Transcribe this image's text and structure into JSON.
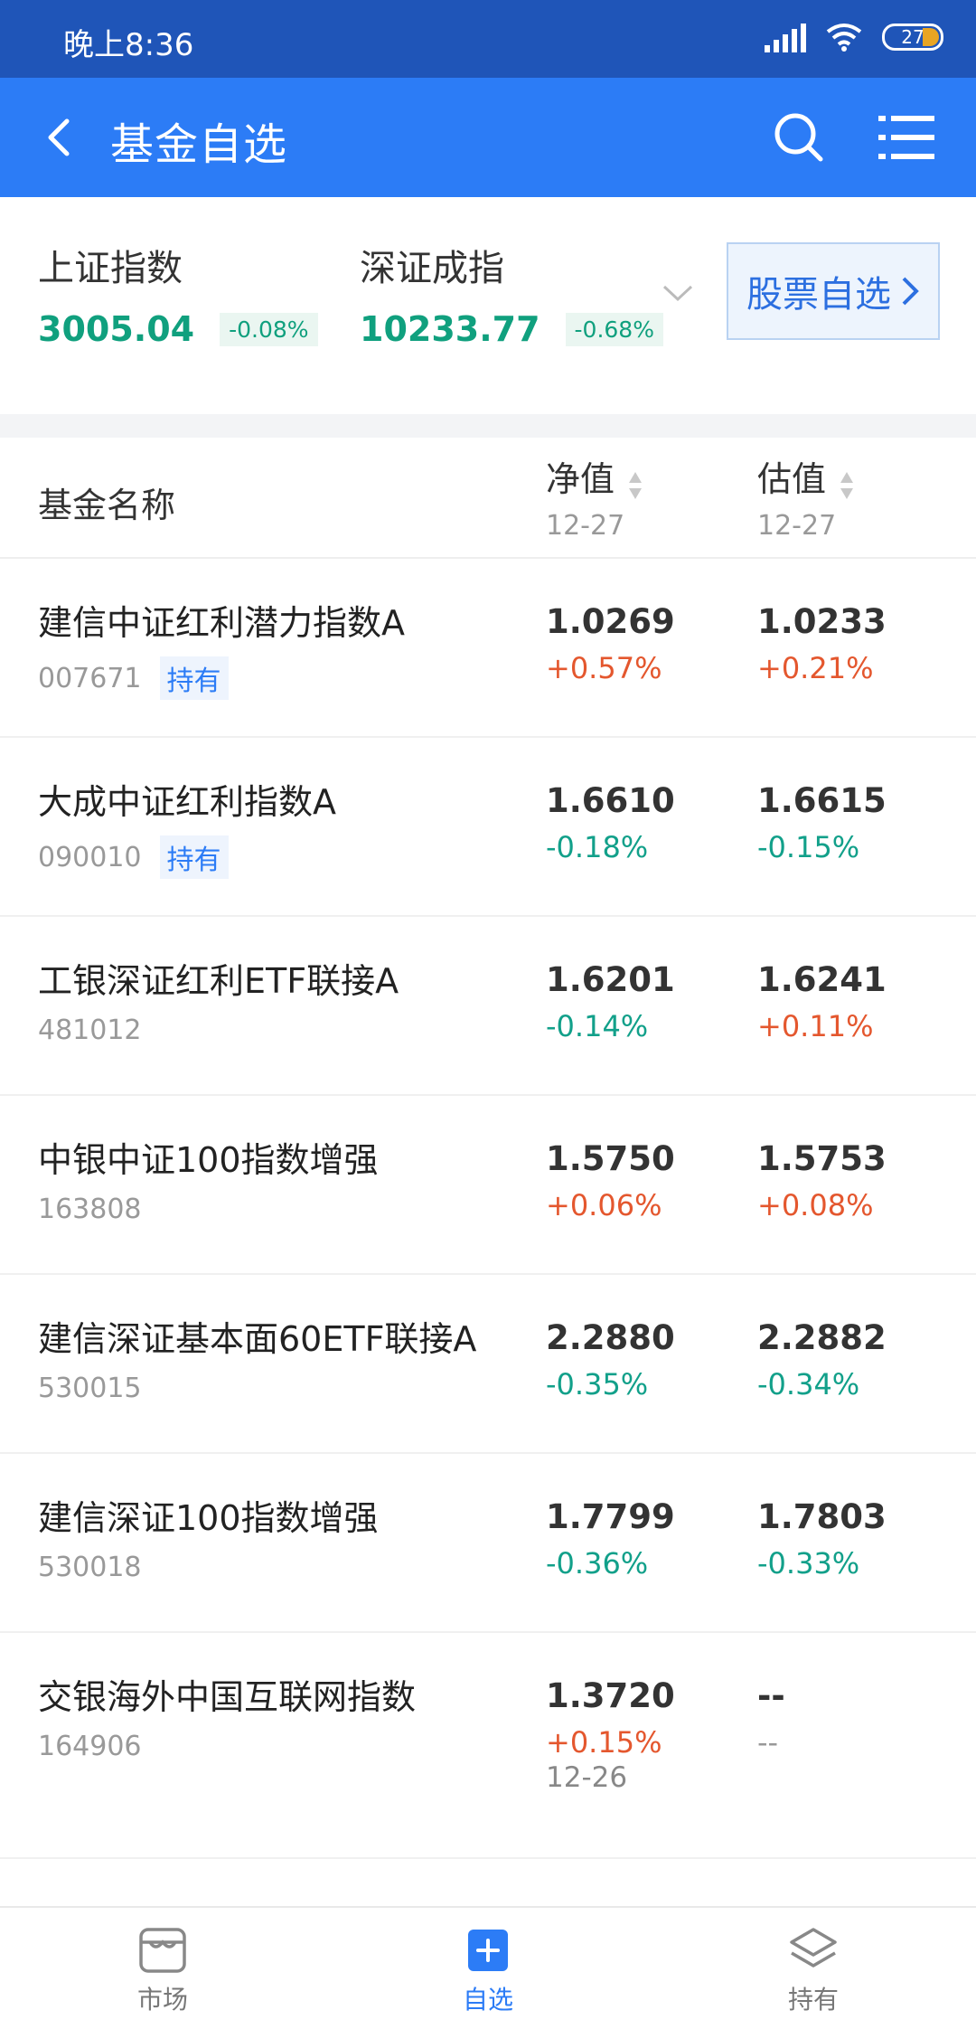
{
  "status": {
    "time": "晚上8:36",
    "battery": "27"
  },
  "nav": {
    "title": "基金自选"
  },
  "indices": [
    {
      "name": "上证指数",
      "value": "3005.04",
      "change": "-0.08%"
    },
    {
      "name": "深证成指",
      "value": "10233.77",
      "change": "-0.68%"
    }
  ],
  "stock_button": {
    "label": "股票自选"
  },
  "table": {
    "col_name": "基金名称",
    "col_nav": "净值",
    "col_nav_date": "12-27",
    "col_est": "估值",
    "col_est_date": "12-27"
  },
  "funds": [
    {
      "name": "建信中证红利潜力指数A",
      "code": "007671",
      "tag": "持有",
      "nav": "1.0269",
      "nav_change": "+0.57%",
      "est": "1.0233",
      "est_change": "+0.21%"
    },
    {
      "name": "大成中证红利指数A",
      "code": "090010",
      "tag": "持有",
      "nav": "1.6610",
      "nav_change": "-0.18%",
      "est": "1.6615",
      "est_change": "-0.15%"
    },
    {
      "name": "工银深证红利ETF联接A",
      "code": "481012",
      "tag": "",
      "nav": "1.6201",
      "nav_change": "-0.14%",
      "est": "1.6241",
      "est_change": "+0.11%"
    },
    {
      "name": "中银中证100指数增强",
      "code": "163808",
      "tag": "",
      "nav": "1.5750",
      "nav_change": "+0.06%",
      "est": "1.5753",
      "est_change": "+0.08%"
    },
    {
      "name": "建信深证基本面60ETF联接A",
      "code": "530015",
      "tag": "",
      "nav": "2.2880",
      "nav_change": "-0.35%",
      "est": "2.2882",
      "est_change": "-0.34%"
    },
    {
      "name": "建信深证100指数增强",
      "code": "530018",
      "tag": "",
      "nav": "1.7799",
      "nav_change": "-0.36%",
      "est": "1.7803",
      "est_change": "-0.33%"
    },
    {
      "name": "交银海外中国互联网指数",
      "code": "164906",
      "tag": "",
      "nav": "1.3720",
      "nav_change": "+0.15%",
      "nav_date": "12-26",
      "est": "--",
      "est_change": "--"
    }
  ],
  "tabs": {
    "market": "市场",
    "watchlist": "自选",
    "holdings": "持有"
  },
  "colors": {
    "primary": "#2c7cf6",
    "statusbar": "#1f55b8",
    "up": "#e4572e",
    "down": "#12a08a"
  }
}
